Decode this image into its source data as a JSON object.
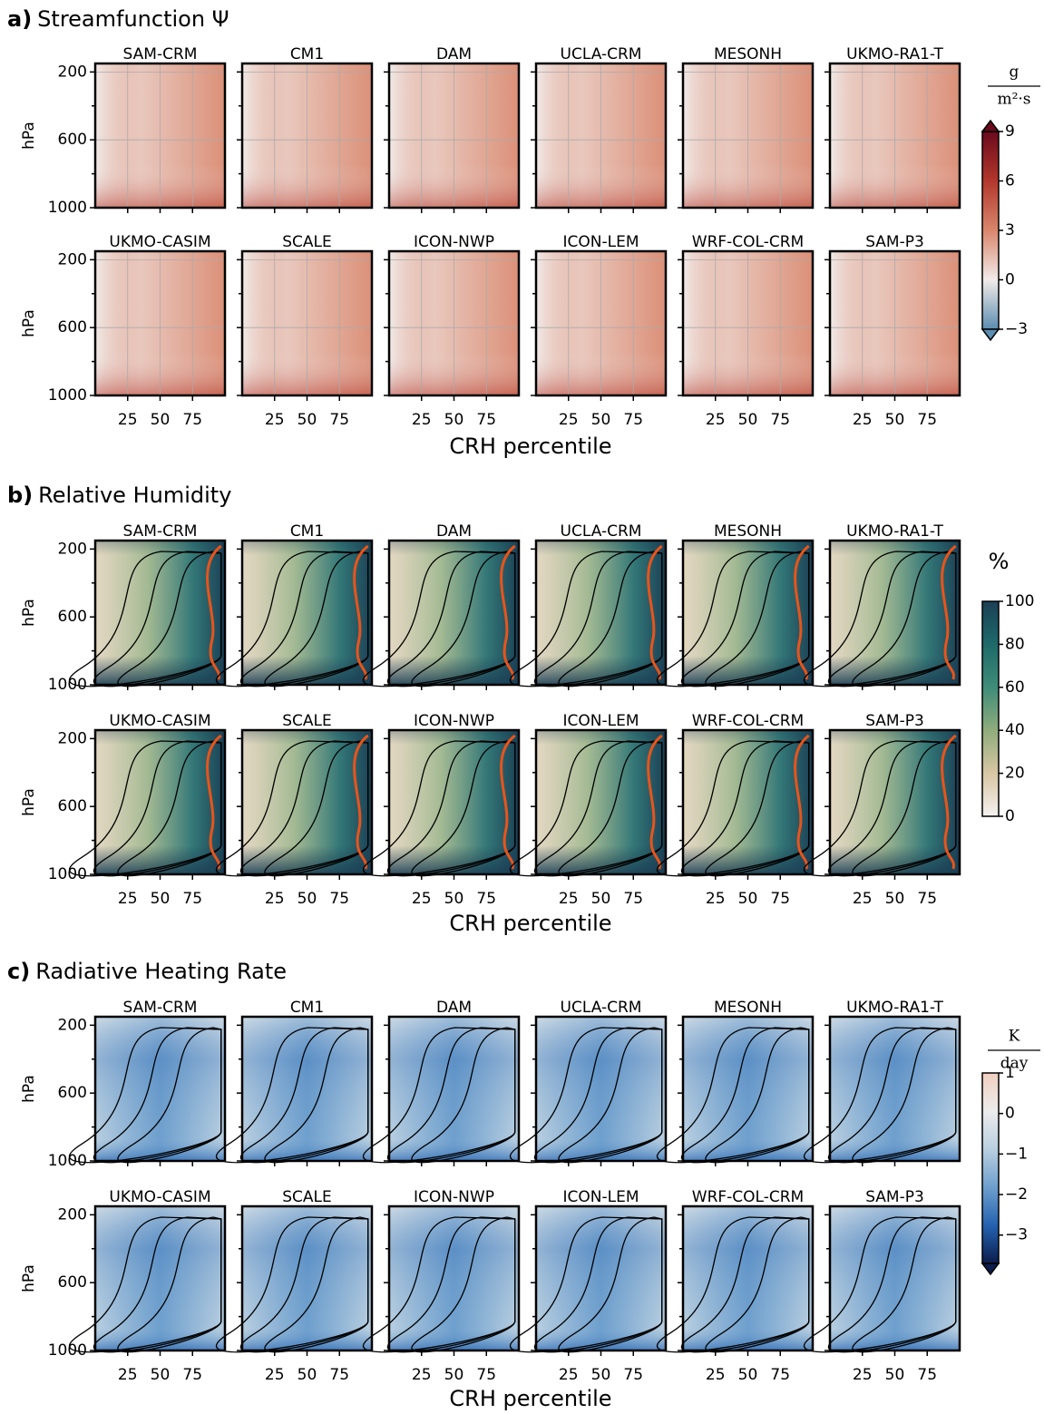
{
  "models": [
    "SAM-CRM",
    "CM1",
    "DAM",
    "UCLA-CRM",
    "MESONH",
    "UKMO-RA1-T",
    "UKMO-CASIM",
    "SCALE",
    "ICON-NWP",
    "ICON-LEM",
    "WRF-COL-CRM",
    "SAM-P3"
  ],
  "axes": {
    "ylabel": "hPa",
    "xlabel": "CRH percentile",
    "xlim": [
      0,
      100
    ],
    "xticks": [
      25,
      50,
      75
    ],
    "ylim": [
      1000,
      150
    ],
    "yticks": [
      200,
      600,
      1000
    ],
    "yminorticks": [
      400,
      800
    ]
  },
  "sections": [
    {
      "letter": "a)",
      "title": "Streamfunction Ψ",
      "grid": true,
      "colorbar": {
        "unit_top": "g",
        "unit_bottom": "m²·s",
        "lim": [
          -3,
          9
        ],
        "extend": "both",
        "ticks": [
          {
            "value": -3,
            "label": "−3"
          },
          0,
          3,
          6,
          9
        ],
        "colors": [
          "#5b8db0",
          "#f1ebe9",
          "#d9866c",
          "#b3372c",
          "#6a0a1c"
        ]
      }
    },
    {
      "letter": "b)",
      "title": "Relative Humidity",
      "grid": false,
      "colorbar": {
        "unit": "%",
        "lim": [
          0,
          100
        ],
        "extend": "none",
        "ticks": [
          0,
          20,
          40,
          60,
          80,
          100
        ],
        "colors": [
          "#f5f2f0",
          "#d8c6a4",
          "#8fac7c",
          "#3f8c78",
          "#1e6a6a",
          "#1b3f55"
        ]
      }
    },
    {
      "letter": "c)",
      "title": "Radiative Heating Rate",
      "grid": false,
      "colorbar": {
        "unit_top": "K",
        "unit_bottom": "day",
        "lim": [
          -3.7,
          1
        ],
        "extend": "lower",
        "ticks": [
          {
            "value": -3,
            "label": "−3"
          },
          {
            "value": -2,
            "label": "−2"
          },
          {
            "value": -1,
            "label": "−1"
          },
          0,
          1
        ],
        "colors": [
          "#0c1d4c",
          "#2462b0",
          "#6e9fcd",
          "#b9cfe0",
          "#ececec",
          "#f1cfc0"
        ]
      }
    }
  ]
}
